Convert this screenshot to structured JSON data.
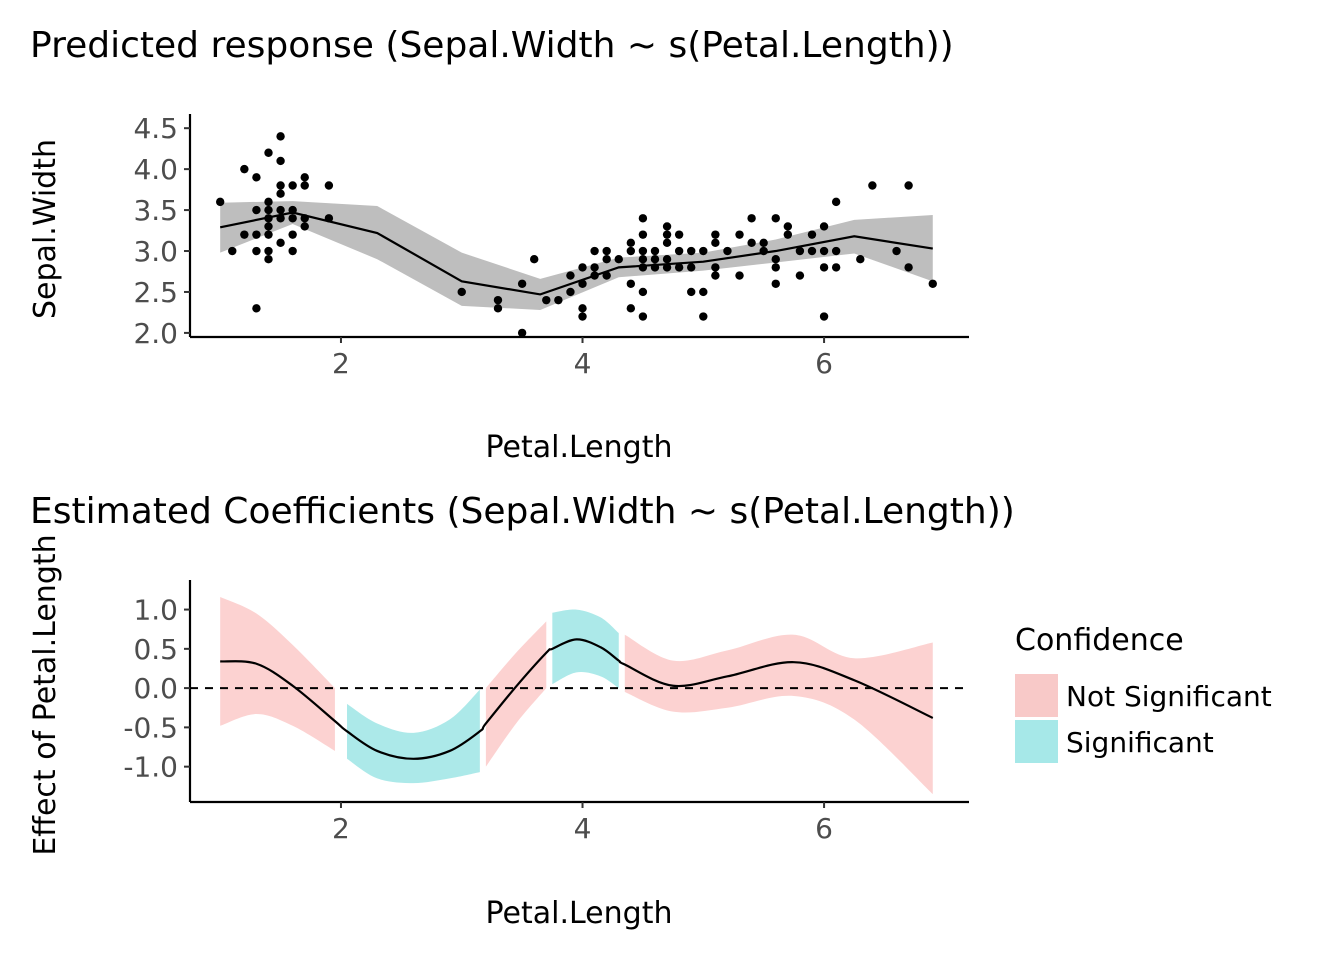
{
  "chart_data": [
    {
      "type": "scatter",
      "title": "Predicted response (Sepal.Width ~ s(Petal.Length))",
      "xlabel": "Petal.Length",
      "ylabel": "Sepal.Width",
      "xlim": [
        0.75,
        7.2
      ],
      "ylim": [
        1.95,
        4.6
      ],
      "x_ticks": [
        2,
        4,
        6
      ],
      "x_tick_labels": [
        "2",
        "4",
        "6"
      ],
      "y_ticks": [
        2.0,
        2.5,
        3.0,
        3.5,
        4.0,
        4.5
      ],
      "y_tick_labels": [
        "2.0",
        "2.5",
        "3.0",
        "3.5",
        "4.0",
        "4.5"
      ],
      "grid": false,
      "colors": {
        "points": "#000000",
        "line": "#000000",
        "ribbon": "#bebebe"
      },
      "points": [
        [
          1.0,
          3.6
        ],
        [
          1.1,
          3.0
        ],
        [
          1.2,
          4.0
        ],
        [
          1.2,
          3.2
        ],
        [
          1.3,
          3.9
        ],
        [
          1.3,
          3.5
        ],
        [
          1.3,
          3.2
        ],
        [
          1.3,
          3.0
        ],
        [
          1.3,
          2.3
        ],
        [
          1.4,
          4.2
        ],
        [
          1.4,
          3.6
        ],
        [
          1.4,
          3.5
        ],
        [
          1.4,
          3.4
        ],
        [
          1.4,
          3.3
        ],
        [
          1.4,
          3.2
        ],
        [
          1.4,
          3.0
        ],
        [
          1.4,
          2.9
        ],
        [
          1.5,
          4.4
        ],
        [
          1.5,
          4.1
        ],
        [
          1.5,
          3.8
        ],
        [
          1.5,
          3.7
        ],
        [
          1.5,
          3.5
        ],
        [
          1.5,
          3.4
        ],
        [
          1.5,
          3.1
        ],
        [
          1.6,
          3.8
        ],
        [
          1.6,
          3.5
        ],
        [
          1.6,
          3.4
        ],
        [
          1.6,
          3.2
        ],
        [
          1.6,
          3.0
        ],
        [
          1.7,
          3.9
        ],
        [
          1.7,
          3.8
        ],
        [
          1.7,
          3.4
        ],
        [
          1.7,
          3.3
        ],
        [
          1.9,
          3.8
        ],
        [
          1.9,
          3.4
        ],
        [
          3.0,
          2.5
        ],
        [
          3.3,
          2.4
        ],
        [
          3.3,
          2.3
        ],
        [
          3.5,
          2.6
        ],
        [
          3.5,
          2.0
        ],
        [
          3.6,
          2.9
        ],
        [
          3.7,
          2.4
        ],
        [
          3.8,
          2.4
        ],
        [
          3.9,
          2.7
        ],
        [
          3.9,
          2.5
        ],
        [
          4.0,
          2.8
        ],
        [
          4.0,
          2.6
        ],
        [
          4.0,
          2.3
        ],
        [
          4.0,
          2.2
        ],
        [
          4.1,
          3.0
        ],
        [
          4.1,
          2.8
        ],
        [
          4.1,
          2.7
        ],
        [
          4.2,
          3.0
        ],
        [
          4.2,
          2.9
        ],
        [
          4.2,
          2.7
        ],
        [
          4.3,
          2.9
        ],
        [
          4.4,
          3.1
        ],
        [
          4.4,
          3.0
        ],
        [
          4.4,
          2.6
        ],
        [
          4.4,
          2.3
        ],
        [
          4.5,
          3.4
        ],
        [
          4.5,
          3.2
        ],
        [
          4.5,
          3.0
        ],
        [
          4.5,
          2.9
        ],
        [
          4.5,
          2.8
        ],
        [
          4.5,
          2.5
        ],
        [
          4.5,
          2.2
        ],
        [
          4.6,
          3.0
        ],
        [
          4.6,
          2.9
        ],
        [
          4.6,
          2.8
        ],
        [
          4.7,
          3.3
        ],
        [
          4.7,
          3.2
        ],
        [
          4.7,
          3.1
        ],
        [
          4.7,
          2.9
        ],
        [
          4.7,
          2.8
        ],
        [
          4.8,
          3.2
        ],
        [
          4.8,
          3.0
        ],
        [
          4.8,
          2.8
        ],
        [
          4.9,
          3.0
        ],
        [
          4.9,
          2.8
        ],
        [
          4.9,
          2.5
        ],
        [
          5.0,
          3.0
        ],
        [
          5.0,
          2.5
        ],
        [
          5.0,
          2.2
        ],
        [
          5.1,
          3.2
        ],
        [
          5.1,
          3.1
        ],
        [
          5.1,
          2.8
        ],
        [
          5.1,
          2.7
        ],
        [
          5.2,
          3.0
        ],
        [
          5.3,
          3.2
        ],
        [
          5.3,
          2.7
        ],
        [
          5.4,
          3.4
        ],
        [
          5.4,
          3.1
        ],
        [
          5.5,
          3.1
        ],
        [
          5.5,
          3.0
        ],
        [
          5.6,
          3.4
        ],
        [
          5.6,
          2.9
        ],
        [
          5.6,
          2.8
        ],
        [
          5.6,
          2.6
        ],
        [
          5.7,
          3.3
        ],
        [
          5.7,
          3.2
        ],
        [
          5.8,
          3.0
        ],
        [
          5.8,
          2.7
        ],
        [
          5.9,
          3.2
        ],
        [
          5.9,
          3.0
        ],
        [
          6.0,
          3.3
        ],
        [
          6.0,
          3.0
        ],
        [
          6.0,
          2.8
        ],
        [
          6.0,
          2.2
        ],
        [
          6.1,
          3.6
        ],
        [
          6.1,
          3.0
        ],
        [
          6.1,
          2.8
        ],
        [
          6.3,
          2.9
        ],
        [
          6.4,
          3.8
        ],
        [
          6.6,
          3.0
        ],
        [
          6.7,
          3.8
        ],
        [
          6.7,
          2.8
        ],
        [
          6.9,
          2.6
        ]
      ],
      "fit_x": [
        1.0,
        1.6,
        2.3,
        3.0,
        3.65,
        4.3,
        5.0,
        5.6,
        6.25,
        6.9
      ],
      "fit_y": [
        3.29,
        3.47,
        3.22,
        2.63,
        2.47,
        2.8,
        2.87,
        3.0,
        3.18,
        3.03
      ],
      "fit_lower": [
        2.98,
        3.33,
        2.9,
        2.33,
        2.28,
        2.68,
        2.76,
        2.86,
        2.97,
        2.63
      ],
      "fit_upper": [
        3.59,
        3.61,
        3.55,
        2.98,
        2.66,
        2.92,
        2.98,
        3.14,
        3.38,
        3.44
      ]
    },
    {
      "type": "area",
      "title": "Estimated Coefficients (Sepal.Width ~ s(Petal.Length))",
      "xlabel": "Petal.Length",
      "ylabel": "Effect of Petal.Length",
      "xlim": [
        0.75,
        7.2
      ],
      "ylim": [
        -1.45,
        1.3
      ],
      "x_ticks": [
        2,
        4,
        6
      ],
      "x_tick_labels": [
        "2",
        "4",
        "6"
      ],
      "y_ticks": [
        1.0,
        0.5,
        0.0,
        -0.5,
        -1.0
      ],
      "y_tick_labels": [
        "1.0",
        "0.5",
        "0.0",
        "-0.5",
        "-1.0"
      ],
      "grid": false,
      "reference_line": 0,
      "legend": {
        "title": "Confidence",
        "placement": "right",
        "entries": [
          {
            "label": "Not Significant",
            "color": "#f8c9c8"
          },
          {
            "label": "Significant",
            "color": "#a6e8e8"
          }
        ]
      },
      "series": [
        {
          "legend": "Not Significant",
          "color": "#fcd2d1",
          "x": [
            1.0,
            1.3,
            1.6,
            1.95
          ],
          "y": [
            0.34,
            0.31,
            0.03,
            -0.42
          ],
          "lower": [
            -0.48,
            -0.33,
            -0.48,
            -0.8
          ],
          "upper": [
            1.16,
            0.95,
            0.55,
            0.0
          ]
        },
        {
          "legend": "Significant",
          "color": "#ace9e9",
          "x": [
            2.05,
            2.3,
            2.6,
            2.9,
            3.15
          ],
          "y": [
            -0.55,
            -0.8,
            -0.9,
            -0.8,
            -0.55
          ],
          "lower": [
            -0.9,
            -1.15,
            -1.21,
            -1.15,
            -1.07
          ],
          "upper": [
            -0.2,
            -0.45,
            -0.57,
            -0.4,
            -0.02
          ]
        },
        {
          "legend": "Not Significant",
          "color": "#fcd2d1",
          "x": [
            3.2,
            3.45,
            3.7
          ],
          "y": [
            -0.45,
            0.02,
            0.45
          ],
          "lower": [
            -1.0,
            -0.45,
            0.0
          ],
          "upper": [
            0.0,
            0.45,
            0.85
          ]
        },
        {
          "legend": "Significant",
          "color": "#ace9e9",
          "x": [
            3.75,
            3.95,
            4.15,
            4.3
          ],
          "y": [
            0.5,
            0.62,
            0.52,
            0.35
          ],
          "lower": [
            0.05,
            0.2,
            0.15,
            0.0
          ],
          "upper": [
            0.96,
            1.0,
            0.9,
            0.7
          ]
        },
        {
          "legend": "Not Significant",
          "color": "#fcd2d1",
          "x": [
            4.35,
            4.75,
            5.2,
            5.75,
            6.25,
            6.9
          ],
          "y": [
            0.3,
            0.03,
            0.15,
            0.33,
            0.1,
            -0.38
          ],
          "lower": [
            -0.05,
            -0.3,
            -0.25,
            -0.1,
            -0.4,
            -1.35
          ],
          "upper": [
            0.68,
            0.35,
            0.48,
            0.68,
            0.38,
            0.58
          ]
        }
      ]
    }
  ]
}
